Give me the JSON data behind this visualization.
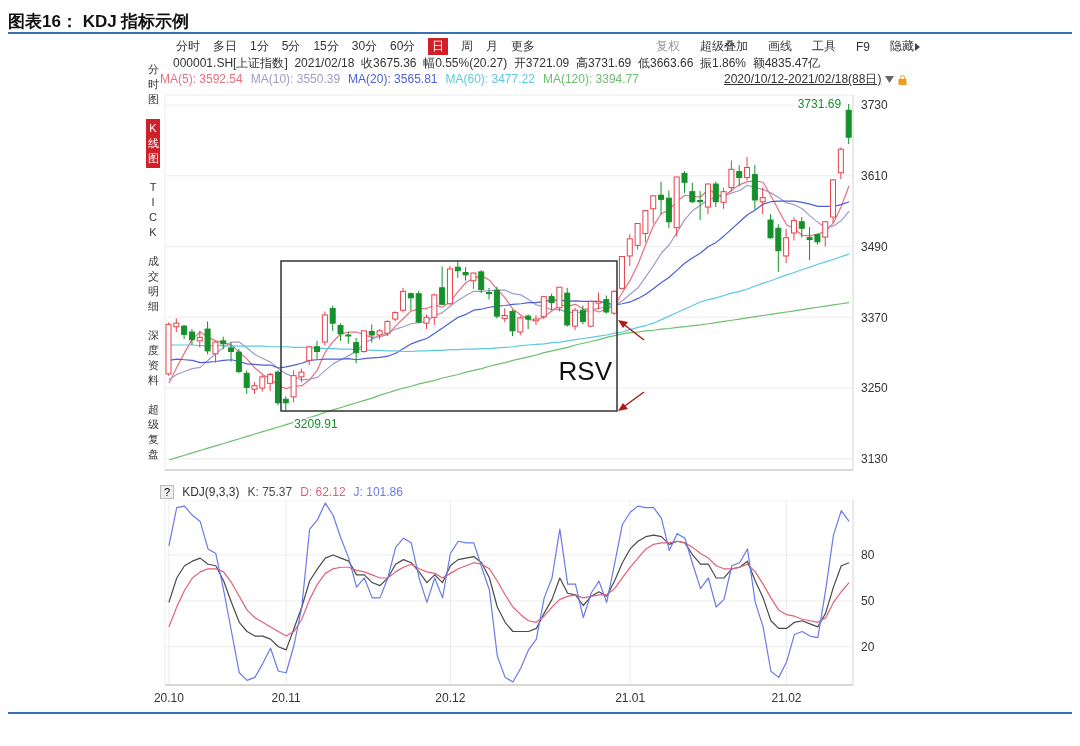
{
  "chart_data": [
    {
      "type": "other",
      "title": "图表16： KDJ 指标示例",
      "annotations": [
        "分时 多日 1分 5分 15分 30分 60分 日 周 月 更多",
        "复权 超级叠加 画线 工具 F9 隐藏",
        "分时图",
        "K线图",
        "TICK",
        "成交明细",
        "深度资料",
        "超级复盘",
        "000001.SH[上证指数]  2021/02/18  收3675.36  幅0.55%(20.27)  开3721.09  高3731.69  低3663.66  振1.86%  额4835.47亿",
        "2020/10/12-2021/02/18(88日)"
      ]
    },
    {
      "type": "candlestick",
      "categories": [
        "20.10",
        null,
        null,
        null,
        null,
        null,
        null,
        null,
        null,
        null,
        null,
        null,
        null,
        null,
        null,
        "20.11",
        null,
        null,
        null,
        null,
        null,
        null,
        null,
        null,
        null,
        null,
        null,
        null,
        null,
        null,
        null,
        null,
        null,
        null,
        null,
        null,
        "20.12",
        null,
        null,
        null,
        null,
        null,
        null,
        null,
        null,
        null,
        null,
        null,
        null,
        null,
        null,
        null,
        null,
        null,
        null,
        null,
        null,
        null,
        null,
        "21.01",
        null,
        null,
        null,
        null,
        null,
        null,
        null,
        null,
        null,
        null,
        null,
        null,
        null,
        null,
        null,
        null,
        null,
        null,
        null,
        "21.02",
        null,
        null,
        null,
        null,
        null,
        null,
        null,
        null
      ],
      "ohlc": [
        [
          3274,
          3361,
          3271,
          3358
        ],
        [
          3354,
          3368,
          3345,
          3360
        ],
        [
          3355,
          3357,
          3333,
          3341
        ],
        [
          3345,
          3350,
          3323,
          3332
        ],
        [
          3330,
          3347,
          3319,
          3336
        ],
        [
          3350,
          3363,
          3307,
          3313
        ],
        [
          3308,
          3329,
          3293,
          3328
        ],
        [
          3330,
          3337,
          3316,
          3325
        ],
        [
          3318,
          3328,
          3295,
          3312
        ],
        [
          3311,
          3316,
          3275,
          3278
        ],
        [
          3275,
          3280,
          3240,
          3251
        ],
        [
          3248,
          3260,
          3240,
          3254
        ],
        [
          3250,
          3272,
          3244,
          3269
        ],
        [
          3258,
          3276,
          3245,
          3273
        ],
        [
          3277,
          3280,
          3221,
          3225
        ],
        [
          3231,
          3236,
          3209.91,
          3225
        ],
        [
          3235,
          3280,
          3226,
          3271
        ],
        [
          3269,
          3283,
          3260,
          3277
        ],
        [
          3297,
          3321,
          3289,
          3320
        ],
        [
          3320,
          3330,
          3298,
          3312
        ],
        [
          3328,
          3380,
          3322,
          3374
        ],
        [
          3385,
          3390,
          3347,
          3360
        ],
        [
          3356,
          3360,
          3330,
          3342
        ],
        [
          3340,
          3345,
          3325,
          3339
        ],
        [
          3327,
          3335,
          3292,
          3310
        ],
        [
          3312,
          3347,
          3310,
          3347
        ],
        [
          3346,
          3358,
          3327,
          3340
        ],
        [
          3340,
          3350,
          3332,
          3347
        ],
        [
          3343,
          3365,
          3338,
          3363
        ],
        [
          3367,
          3380,
          3363,
          3378
        ],
        [
          3382,
          3420,
          3378,
          3414
        ],
        [
          3410,
          3412,
          3382,
          3403
        ],
        [
          3410,
          3415,
          3360,
          3362
        ],
        [
          3360,
          3375,
          3350,
          3370
        ],
        [
          3370,
          3410,
          3357,
          3408
        ],
        [
          3420,
          3456,
          3391,
          3392
        ],
        [
          3393,
          3457,
          3391,
          3452
        ],
        [
          3455,
          3465,
          3437,
          3449
        ],
        [
          3446,
          3455,
          3432,
          3442
        ],
        [
          3432,
          3446,
          3418,
          3445
        ],
        [
          3447,
          3450,
          3411,
          3417
        ],
        [
          3412,
          3420,
          3400,
          3410
        ],
        [
          3416,
          3422,
          3368,
          3372
        ],
        [
          3368,
          3385,
          3362,
          3373
        ],
        [
          3380,
          3383,
          3338,
          3347
        ],
        [
          3345,
          3372,
          3340,
          3369
        ],
        [
          3372,
          3375,
          3350,
          3367
        ],
        [
          3364,
          3374,
          3357,
          3367
        ],
        [
          3371,
          3406,
          3367,
          3405
        ],
        [
          3405,
          3410,
          3382,
          3395
        ],
        [
          3386,
          3421,
          3380,
          3421
        ],
        [
          3411,
          3420,
          3354,
          3357
        ],
        [
          3355,
          3386,
          3348,
          3382
        ],
        [
          3382,
          3390,
          3358,
          3363
        ],
        [
          3355,
          3398,
          3353,
          3397
        ],
        [
          3394,
          3412,
          3383,
          3397
        ],
        [
          3400,
          3407,
          3376,
          3379
        ],
        [
          3377,
          3416,
          3374,
          3414
        ],
        [
          3419,
          3474,
          3417,
          3473
        ],
        [
          3474,
          3511,
          3457,
          3503
        ],
        [
          3492,
          3529,
          3485,
          3529
        ],
        [
          3512,
          3551,
          3497,
          3551
        ],
        [
          3554,
          3577,
          3529,
          3576
        ],
        [
          3577,
          3600,
          3544,
          3570
        ],
        [
          3572,
          3585,
          3521,
          3532
        ],
        [
          3522,
          3608,
          3507,
          3608
        ],
        [
          3614,
          3618,
          3581,
          3599
        ],
        [
          3583,
          3598,
          3564,
          3566
        ],
        [
          3568,
          3584,
          3535,
          3566
        ],
        [
          3557,
          3597,
          3545,
          3596
        ],
        [
          3596,
          3600,
          3557,
          3566
        ],
        [
          3565,
          3590,
          3554,
          3583
        ],
        [
          3590,
          3636,
          3583,
          3621
        ],
        [
          3617,
          3628,
          3592,
          3607
        ],
        [
          3607,
          3642,
          3602,
          3624
        ],
        [
          3612,
          3628,
          3553,
          3569
        ],
        [
          3566,
          3590,
          3545,
          3573
        ],
        [
          3535,
          3545,
          3503,
          3505
        ],
        [
          3521,
          3528,
          3447,
          3483
        ],
        [
          3474,
          3520,
          3462,
          3505
        ],
        [
          3513,
          3540,
          3500,
          3534
        ],
        [
          3532,
          3540,
          3505,
          3521
        ],
        [
          3505,
          3523,
          3467,
          3502
        ],
        [
          3510,
          3512,
          3493,
          3498
        ],
        [
          3506,
          3533,
          3490,
          3532
        ],
        [
          3540,
          3604,
          3530,
          3603
        ],
        [
          3615,
          3658,
          3604,
          3655
        ],
        [
          3721.09,
          3731.69,
          3663.66,
          3675.36
        ]
      ],
      "colors": [
        "#e8414b",
        "#e8414b",
        "#15902a",
        "#15902a",
        "#e8414b",
        "#15902a",
        "#e8414b",
        "#15902a",
        "#15902a",
        "#15902a",
        "#15902a",
        "#e8414b",
        "#e8414b",
        "#e8414b",
        "#15902a",
        "#15902a",
        "#e8414b",
        "#e8414b",
        "#e8414b",
        "#15902a",
        "#e8414b",
        "#15902a",
        "#15902a",
        "#15902a",
        "#15902a",
        "#e8414b",
        "#15902a",
        "#e8414b",
        "#e8414b",
        "#e8414b",
        "#e8414b",
        "#15902a",
        "#15902a",
        "#e8414b",
        "#e8414b",
        "#15902a",
        "#e8414b",
        "#15902a",
        "#15902a",
        "#e8414b",
        "#15902a",
        "#15902a",
        "#15902a",
        "#e8414b",
        "#15902a",
        "#e8414b",
        "#15902a",
        "#e8414b",
        "#e8414b",
        "#15902a",
        "#e8414b",
        "#15902a",
        "#e8414b",
        "#15902a",
        "#e8414b",
        "#e8414b",
        "#15902a",
        "#e8414b",
        "#e8414b",
        "#e8414b",
        "#e8414b",
        "#e8414b",
        "#e8414b",
        "#15902a",
        "#15902a",
        "#e8414b",
        "#15902a",
        "#15902a",
        "#15902a",
        "#e8414b",
        "#15902a",
        "#e8414b",
        "#e8414b",
        "#15902a",
        "#e8414b",
        "#15902a",
        "#e8414b",
        "#15902a",
        "#15902a",
        "#e8414b",
        "#e8414b",
        "#15902a",
        "#15902a",
        "#15902a",
        "#e8414b",
        "#e8414b",
        "#e8414b",
        "#15902a"
      ],
      "series": [
        {
          "type": "line",
          "name": "MA(5): 3592.54",
          "color": "#e8707e",
          "values": [
            3258,
            3285,
            3310,
            3333,
            3345,
            3336,
            3330,
            3327,
            3323,
            3311,
            3299,
            3284,
            3273,
            3265,
            3254,
            3249,
            3253,
            3254,
            3264,
            3281,
            3311,
            3329,
            3342,
            3345,
            3345,
            3340,
            3336,
            3337,
            3341,
            3355,
            3368,
            3381,
            3384,
            3385,
            3391,
            3387,
            3397,
            3414,
            3429,
            3436,
            3441,
            3433,
            3417,
            3403,
            3384,
            3374,
            3366,
            3365,
            3371,
            3381,
            3391,
            3389,
            3392,
            3384,
            3384,
            3379,
            3384,
            3390,
            3412,
            3433,
            3460,
            3494,
            3526,
            3546,
            3552,
            3567,
            3577,
            3575,
            3574,
            3587,
            3579,
            3575,
            3586,
            3595,
            3600,
            3601,
            3599,
            3576,
            3551,
            3527,
            3520,
            3509,
            3508,
            3511,
            3516,
            3530,
            3558,
            3593
          ]
        },
        {
          "type": "line",
          "name": "MA(10): 3550.39",
          "color": "#a09cc8",
          "values": [
            3264,
            3273,
            3278,
            3283,
            3285,
            3297,
            3308,
            3319,
            3328,
            3328,
            3318,
            3307,
            3300,
            3294,
            3283,
            3274,
            3269,
            3264,
            3265,
            3268,
            3280,
            3291,
            3298,
            3305,
            3313,
            3326,
            3333,
            3340,
            3343,
            3350,
            3354,
            3359,
            3361,
            3363,
            3373,
            3378,
            3389,
            3399,
            3407,
            3414,
            3414,
            3415,
            3416,
            3416,
            3410,
            3408,
            3400,
            3391,
            3387,
            3383,
            3383,
            3378,
            3379,
            3378,
            3383,
            3385,
            3387,
            3391,
            3398,
            3409,
            3420,
            3439,
            3458,
            3479,
            3493,
            3514,
            3536,
            3551,
            3560,
            3570,
            3573,
            3576,
            3581,
            3585,
            3594,
            3590,
            3587,
            3581,
            3573,
            3564,
            3561,
            3554,
            3542,
            3531,
            3522,
            3525,
            3534,
            3550
          ]
        },
        {
          "type": "line",
          "name": "MA(20): 3565.81",
          "color": "#4a5fd8",
          "values": [
            3297,
            3299,
            3298,
            3297,
            3293,
            3294,
            3295,
            3297,
            3298,
            3295,
            3291,
            3290,
            3289,
            3289,
            3284,
            3286,
            3289,
            3292,
            3297,
            3298,
            3299,
            3299,
            3299,
            3300,
            3298,
            3300,
            3301,
            3302,
            3304,
            3309,
            3317,
            3325,
            3330,
            3334,
            3343,
            3352,
            3361,
            3370,
            3375,
            3382,
            3384,
            3387,
            3389,
            3390,
            3392,
            3393,
            3395,
            3395,
            3397,
            3399,
            3399,
            3397,
            3398,
            3397,
            3397,
            3397,
            3394,
            3391,
            3393,
            3396,
            3402,
            3409,
            3419,
            3429,
            3438,
            3450,
            3462,
            3471,
            3479,
            3490,
            3497,
            3508,
            3520,
            3532,
            3544,
            3552,
            3562,
            3566,
            3567,
            3567,
            3567,
            3565,
            3562,
            3558,
            3558,
            3558,
            3561,
            3566
          ]
        },
        {
          "type": "line",
          "name": "MA(60): 3477.22",
          "color": "#5cc8e0",
          "values": [
            3323,
            3323,
            3323,
            3323,
            3322,
            3322,
            3322,
            3322,
            3321,
            3321,
            3321,
            3321,
            3321,
            3320,
            3320,
            3320,
            3319,
            3319,
            3318,
            3318,
            3317,
            3317,
            3316,
            3316,
            3315,
            3315,
            3314,
            3314,
            3313,
            3313,
            3312,
            3312,
            3313,
            3313,
            3314,
            3314,
            3315,
            3315,
            3316,
            3316,
            3317,
            3317,
            3318,
            3319,
            3320,
            3322,
            3323,
            3324,
            3325,
            3327,
            3328,
            3330,
            3332,
            3334,
            3336,
            3338,
            3340,
            3343,
            3345,
            3349,
            3353,
            3356,
            3360,
            3366,
            3372,
            3378,
            3384,
            3390,
            3396,
            3400,
            3403,
            3407,
            3411,
            3414,
            3418,
            3423,
            3428,
            3432,
            3437,
            3442,
            3446,
            3451,
            3455,
            3460,
            3464,
            3468,
            3473,
            3477
          ]
        },
        {
          "type": "line",
          "name": "MA(120): 3394.77",
          "color": "#6cbf6c",
          "values": [
            3128,
            3132,
            3136,
            3140,
            3144,
            3148,
            3152,
            3156,
            3160,
            3164,
            3168,
            3172,
            3176,
            3180,
            3184,
            3188,
            3192,
            3196,
            3200,
            3204,
            3209,
            3213,
            3217,
            3221,
            3225,
            3229,
            3233,
            3238,
            3242,
            3246,
            3250,
            3253,
            3257,
            3260,
            3263,
            3267,
            3270,
            3273,
            3277,
            3280,
            3283,
            3287,
            3290,
            3293,
            3297,
            3300,
            3303,
            3306,
            3310,
            3313,
            3316,
            3319,
            3323,
            3326,
            3329,
            3332,
            3336,
            3339,
            3342,
            3344,
            3345,
            3347,
            3348,
            3350,
            3351,
            3353,
            3354,
            3356,
            3357,
            3359,
            3361,
            3363,
            3365,
            3367,
            3369,
            3371,
            3373,
            3375,
            3377,
            3379,
            3381,
            3383,
            3385,
            3387,
            3389,
            3391,
            3393,
            3395
          ]
        }
      ],
      "ylim": [
        3111,
        3747
      ],
      "yticks": [
        3130,
        3250,
        3370,
        3490,
        3610,
        3730
      ],
      "grid": true,
      "legend": "top left",
      "tick_labels": "y",
      "annotations": [
        "3731.69",
        "3209.91",
        "RSV"
      ]
    },
    {
      "type": "line",
      "categories": [
        "20.10",
        null,
        null,
        null,
        null,
        null,
        null,
        null,
        null,
        null,
        null,
        null,
        null,
        null,
        null,
        "20.11",
        null,
        null,
        null,
        null,
        null,
        null,
        null,
        null,
        null,
        null,
        null,
        null,
        null,
        null,
        null,
        null,
        null,
        null,
        null,
        null,
        "20.12",
        null,
        null,
        null,
        null,
        null,
        null,
        null,
        null,
        null,
        null,
        null,
        null,
        null,
        null,
        null,
        null,
        null,
        null,
        null,
        null,
        null,
        null,
        "21.01",
        null,
        null,
        null,
        null,
        null,
        null,
        null,
        null,
        null,
        null,
        null,
        null,
        null,
        null,
        null,
        null,
        null,
        null,
        null,
        "21.02",
        null,
        null,
        null,
        null,
        null,
        null,
        null,
        null
      ],
      "legend_title": "KDJ(9,3,3)",
      "annotations": [
        "?"
      ],
      "series": [
        {
          "name": "K: 75.37",
          "color": "#4a4a4a",
          "values": [
            49,
            65,
            73,
            76,
            78,
            74,
            73,
            63,
            49,
            36,
            30,
            27,
            27,
            25,
            20,
            18,
            32,
            46,
            63,
            71,
            78,
            80,
            78,
            76,
            67,
            67,
            62,
            60,
            65,
            74,
            77,
            75,
            69,
            62,
            67,
            62,
            73,
            77,
            78,
            79,
            75,
            65,
            46,
            36,
            30,
            30,
            30,
            32,
            42,
            51,
            65,
            55,
            54,
            47,
            53,
            56,
            53,
            63,
            75,
            84,
            89,
            92,
            93,
            92,
            87,
            89,
            88,
            80,
            74,
            74,
            65,
            65,
            71,
            72,
            76,
            63,
            52,
            37,
            32,
            32,
            36,
            37,
            35,
            33,
            42,
            59,
            73,
            75
          ]
        },
        {
          "name": "D: 62.12",
          "color": "#e0607a",
          "values": [
            33,
            46,
            57,
            65,
            69,
            71,
            71,
            69,
            62,
            53,
            44,
            39,
            36,
            33,
            30,
            27,
            30,
            38,
            51,
            61,
            68,
            71,
            72,
            72,
            70,
            69,
            67,
            65,
            65,
            69,
            72,
            74,
            71,
            69,
            68,
            65,
            68,
            71,
            73,
            75,
            74,
            71,
            63,
            54,
            46,
            41,
            37,
            36,
            40,
            46,
            51,
            53,
            54,
            52,
            53,
            54,
            54,
            58,
            65,
            72,
            78,
            84,
            87,
            88,
            88,
            89,
            88,
            85,
            81,
            78,
            73,
            71,
            71,
            72,
            74,
            69,
            61,
            52,
            44,
            41,
            40,
            38,
            37,
            36,
            39,
            49,
            56,
            62
          ]
        },
        {
          "name": "J: 101.86",
          "color": "#6a7be6",
          "values": [
            86,
            111,
            112,
            106,
            102,
            84,
            81,
            57,
            30,
            3,
            -2,
            0,
            9,
            19,
            4,
            3,
            21,
            46,
            97,
            103,
            114,
            106,
            91,
            78,
            59,
            65,
            52,
            52,
            65,
            85,
            91,
            88,
            65,
            49,
            65,
            52,
            81,
            89,
            88,
            88,
            72,
            57,
            14,
            0,
            -3,
            6,
            18,
            25,
            52,
            65,
            97,
            61,
            61,
            39,
            55,
            63,
            49,
            74,
            100,
            108,
            112,
            111,
            111,
            104,
            83,
            94,
            91,
            74,
            58,
            65,
            46,
            51,
            73,
            75,
            84,
            49,
            33,
            4,
            0,
            10,
            28,
            30,
            27,
            26,
            57,
            93,
            109,
            102
          ]
        }
      ],
      "ylim": [
        -5,
        116
      ],
      "yticks": [
        20,
        50,
        80
      ],
      "grid": true,
      "legend": "top left"
    }
  ]
}
